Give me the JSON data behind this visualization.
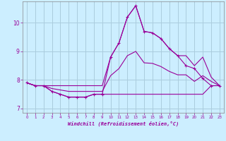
{
  "xlabel": "Windchill (Refroidissement éolien,°C)",
  "background_color": "#cceeff",
  "grid_color": "#aaccdd",
  "line_color": "#990099",
  "x_hours": [
    0,
    1,
    2,
    3,
    4,
    5,
    6,
    7,
    8,
    9,
    10,
    11,
    12,
    13,
    14,
    15,
    16,
    17,
    18,
    19,
    20,
    21,
    22,
    23
  ],
  "windchill": [
    7.9,
    7.8,
    7.8,
    7.6,
    7.5,
    7.4,
    7.4,
    7.4,
    7.5,
    7.5,
    8.8,
    9.3,
    10.2,
    10.6,
    9.7,
    9.65,
    9.45,
    9.1,
    8.85,
    8.5,
    8.4,
    8.05,
    7.8,
    7.8
  ],
  "temp_min": [
    7.9,
    7.8,
    7.8,
    7.6,
    7.5,
    7.4,
    7.4,
    7.4,
    7.5,
    7.5,
    7.5,
    7.5,
    7.5,
    7.5,
    7.5,
    7.5,
    7.5,
    7.5,
    7.5,
    7.5,
    7.5,
    7.5,
    7.8,
    7.8
  ],
  "temp_max": [
    7.9,
    7.8,
    7.8,
    7.8,
    7.8,
    7.8,
    7.8,
    7.8,
    7.8,
    7.8,
    8.8,
    9.3,
    10.2,
    10.6,
    9.7,
    9.65,
    9.45,
    9.1,
    8.85,
    8.85,
    8.5,
    8.8,
    8.1,
    7.8
  ],
  "temp_mean": [
    7.9,
    7.8,
    7.8,
    7.7,
    7.65,
    7.6,
    7.6,
    7.6,
    7.6,
    7.6,
    8.15,
    8.4,
    8.85,
    9.0,
    8.6,
    8.58,
    8.47,
    8.3,
    8.18,
    8.18,
    7.95,
    8.15,
    7.95,
    7.8
  ],
  "ylim": [
    6.85,
    10.75
  ],
  "xlim": [
    -0.5,
    23.5
  ],
  "yticks": [
    7,
    8,
    9,
    10
  ],
  "xticks": [
    0,
    1,
    2,
    3,
    4,
    5,
    6,
    7,
    8,
    9,
    10,
    11,
    12,
    13,
    14,
    15,
    16,
    17,
    18,
    19,
    20,
    21,
    22,
    23
  ]
}
